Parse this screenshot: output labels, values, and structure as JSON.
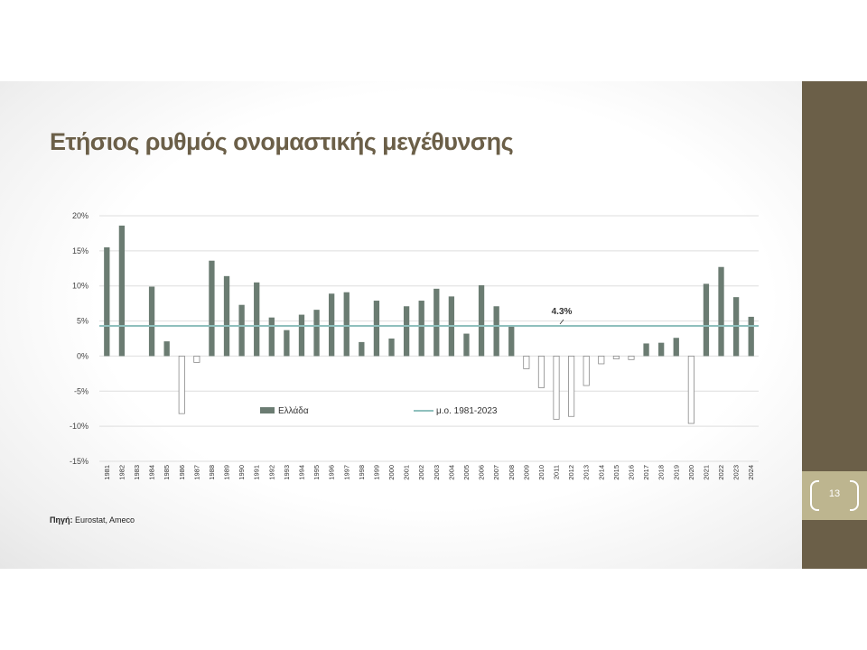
{
  "slide": {
    "title": "Ετήσιος ρυθμός ονομαστικής μεγέθυνσης",
    "source_label": "Πηγή:",
    "source_text": " Eurostat, Ameco",
    "page_number": "13"
  },
  "colors": {
    "brand_panel": "#6b5f48",
    "page_box": "#bdb58f",
    "bar_fill": "#6b7c72",
    "avg_line": "#8fc0bd"
  },
  "chart_data": {
    "type": "bar",
    "categories": [
      "1981",
      "1982",
      "1983",
      "1984",
      "1985",
      "1986",
      "1987",
      "1988",
      "1989",
      "1990",
      "1991",
      "1992",
      "1993",
      "1994",
      "1995",
      "1996",
      "1997",
      "1998",
      "1999",
      "2000",
      "2001",
      "2002",
      "2003",
      "2004",
      "2005",
      "2006",
      "2007",
      "2008",
      "2009",
      "2010",
      "2011",
      "2012",
      "2013",
      "2014",
      "2015",
      "2016",
      "2017",
      "2018",
      "2019",
      "2020",
      "2021",
      "2022",
      "2023",
      "2024"
    ],
    "series": [
      {
        "name": "Ελλάδα",
        "values": [
          15.5,
          18.6,
          null,
          9.9,
          2.1,
          -8.2,
          -0.9,
          13.6,
          11.4,
          7.3,
          10.5,
          5.5,
          3.7,
          5.9,
          6.6,
          8.9,
          9.1,
          2.0,
          7.9,
          2.5,
          7.1,
          7.9,
          9.6,
          8.5,
          3.2,
          10.1,
          7.1,
          4.2,
          -1.8,
          -4.5,
          -9.0,
          -8.6,
          -4.2,
          -1.1,
          -0.4,
          -0.5,
          1.8,
          1.9,
          2.6,
          -9.6,
          10.3,
          12.7,
          8.4,
          5.6
        ]
      }
    ],
    "average": {
      "name": "μ.ο. 1981-2023",
      "value": 4.3,
      "label": "4.3%"
    },
    "yticks": [
      "20%",
      "15%",
      "10%",
      "5%",
      "0%",
      "-5%",
      "-10%",
      "-15%"
    ],
    "ylim": [
      -15,
      20
    ],
    "grid": true,
    "legend_position": "inside-bottom"
  }
}
